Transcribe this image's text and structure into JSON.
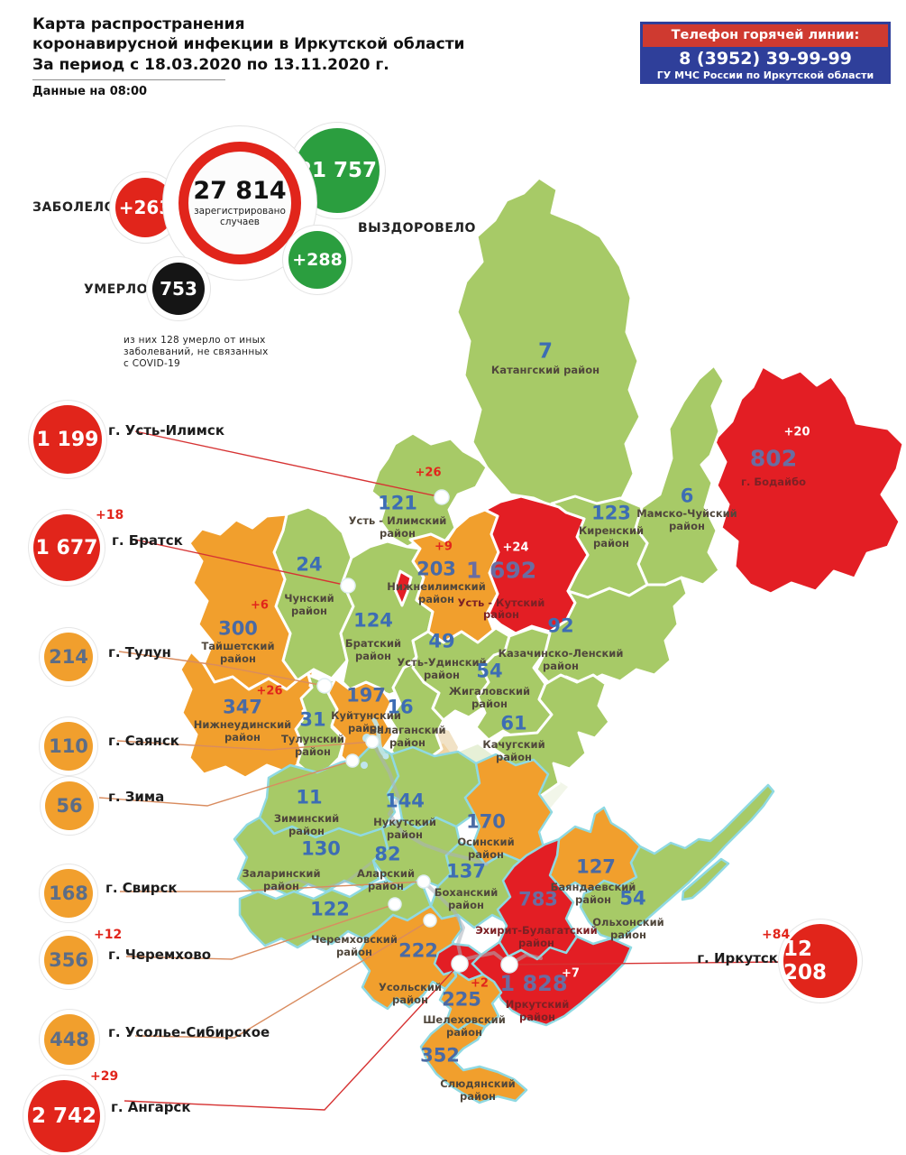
{
  "header": {
    "title": "Карта распространения\nкоронавирусной инфекции в Иркутской области\nЗа период с 18.03.2020 по 13.11.2020 г.",
    "data_asof": "Данные на 08:00"
  },
  "hotline": {
    "title": "Телефон горячей линии:",
    "phone": "8 (3952) 39-99-99",
    "org": "ГУ МЧС России по Иркутской области"
  },
  "stats": {
    "sick_label": "ЗАБОЛЕЛО",
    "sick_delta": "+263",
    "registered_value": "27 814",
    "registered_caption": "зарегистрировано\nслучаев",
    "recovered_value": "21 757",
    "recovered_label": "ВЫЗДОРОВЕЛО",
    "recovered_delta": "+288",
    "died_label": "УМЕРЛО",
    "died_value": "753",
    "died_note": "из них 128 умерло от иных\nзаболеваний, не связанных\nс COVID-19"
  },
  "cities": [
    {
      "id": "ust_ilimsk",
      "value": "1 199",
      "delta": "",
      "label": "г. Усть-Илимск"
    },
    {
      "id": "bratsk",
      "value": "1 677",
      "delta": "+18",
      "label": "г. Братск"
    },
    {
      "id": "tulun",
      "value": "214",
      "delta": "",
      "label": "г. Тулун"
    },
    {
      "id": "sayansk",
      "value": "110",
      "delta": "",
      "label": "г. Саянск"
    },
    {
      "id": "zima",
      "value": "56",
      "delta": "",
      "label": "г. Зима"
    },
    {
      "id": "svirsk",
      "value": "168",
      "delta": "",
      "label": "г. Свирск"
    },
    {
      "id": "cheremkhovo",
      "value": "356",
      "delta": "+12",
      "label": "г. Черемхово"
    },
    {
      "id": "usolye",
      "value": "448",
      "delta": "",
      "label": "г. Усолье-Сибирское"
    },
    {
      "id": "angarsk",
      "value": "2 742",
      "delta": "+29",
      "label": "г. Ангарск"
    },
    {
      "id": "irkutsk",
      "value": "12 208",
      "delta": "+84",
      "label": "г. Иркутск"
    }
  ],
  "map": {
    "regions": [
      {
        "id": "katangsky",
        "name": "Катангский район",
        "cases": "7",
        "delta": "",
        "tone": "green"
      },
      {
        "id": "bodaibo",
        "name": "г. Бодайбо",
        "cases": "802",
        "delta": "+20",
        "tone": "red"
      },
      {
        "id": "ust_ilimsky",
        "name": "Усть - Илимский\nрайон",
        "cases": "121",
        "delta": "+26",
        "tone": "green"
      },
      {
        "id": "kirensky",
        "name": "Киренский\nрайон",
        "cases": "123",
        "delta": "",
        "tone": "green"
      },
      {
        "id": "mamsko",
        "name": "Мамско-Чуйский\nрайон",
        "cases": "6",
        "delta": "",
        "tone": "green"
      },
      {
        "id": "chunsky",
        "name": "Чунский\nрайон",
        "cases": "24",
        "delta": "",
        "tone": "green"
      },
      {
        "id": "nizhneilimsky",
        "name": "Нижнеилимский\nрайон",
        "cases": "203",
        "delta": "+9",
        "tone": "orange"
      },
      {
        "id": "ust_kutsky",
        "name": "Усть - Кутский\nрайон",
        "cases": "1 692",
        "delta": "+24",
        "tone": "red"
      },
      {
        "id": "bratsky",
        "name": "Братский\nрайон",
        "cases": "124",
        "delta": "",
        "tone": "green"
      },
      {
        "id": "kazachinsko",
        "name": "Казачинско-Ленский\nрайон",
        "cases": "92",
        "delta": "",
        "tone": "green"
      },
      {
        "id": "taishetsky",
        "name": "Тайшетский\nрайон",
        "cases": "300",
        "delta": "+6",
        "tone": "orange"
      },
      {
        "id": "ust_udinsky",
        "name": "Усть-Удинский\nрайон",
        "cases": "49",
        "delta": "",
        "tone": "green"
      },
      {
        "id": "zhigalovsky",
        "name": "Жигаловский\nрайон",
        "cases": "54",
        "delta": "",
        "tone": "green"
      },
      {
        "id": "kachugsky",
        "name": "Качугский\nрайон",
        "cases": "61",
        "delta": "",
        "tone": "green"
      },
      {
        "id": "nizhneudinsky",
        "name": "Нижнеудинский\nрайон",
        "cases": "347",
        "delta": "+26",
        "tone": "orange"
      },
      {
        "id": "kuitunsky",
        "name": "Куйтунский\nрайон",
        "cases": "197",
        "delta": "",
        "tone": "orange"
      },
      {
        "id": "tulunsky",
        "name": "Тулунский\nрайон",
        "cases": "31",
        "delta": "",
        "tone": "green"
      },
      {
        "id": "balagansky",
        "name": "Балаганский\nрайон",
        "cases": "16",
        "delta": "",
        "tone": "green"
      },
      {
        "id": "ziminsky",
        "name": "Зиминский\nрайон",
        "cases": "11",
        "delta": "",
        "tone": "green"
      },
      {
        "id": "nukutsky",
        "name": "Нукутский\nрайон",
        "cases": "144",
        "delta": "",
        "tone": "green"
      },
      {
        "id": "osinsky",
        "name": "Осинский\nрайон",
        "cases": "170",
        "delta": "",
        "tone": "orange"
      },
      {
        "id": "zalarinsky",
        "name": "Заларинский\nрайон",
        "cases": "130",
        "delta": "",
        "tone": "green"
      },
      {
        "id": "alarsky",
        "name": "Аларский\nрайон",
        "cases": "82",
        "delta": "",
        "tone": "green"
      },
      {
        "id": "bokhansky",
        "name": "Боханский\nрайон",
        "cases": "137",
        "delta": "",
        "tone": "green"
      },
      {
        "id": "bayandaevsky",
        "name": "Баяндаевский\nрайон",
        "cases": "127",
        "delta": "",
        "tone": "orange"
      },
      {
        "id": "olkhonsky",
        "name": "Ольхонский\nрайон",
        "cases": "54",
        "delta": "",
        "tone": "green"
      },
      {
        "id": "cheremkhovsky",
        "name": "Черемховский\nрайон",
        "cases": "122",
        "delta": "",
        "tone": "green"
      },
      {
        "id": "ekhirit",
        "name": "Эхирит-Булагатский\nрайон",
        "cases": "783",
        "delta": "",
        "tone": "red"
      },
      {
        "id": "usolsky",
        "name": "Усольский\nрайон",
        "cases": "222",
        "delta": "",
        "tone": "orange"
      },
      {
        "id": "shelekhovsky",
        "name": "Шелеховский\nрайон",
        "cases": "225",
        "delta": "+2",
        "tone": "orange"
      },
      {
        "id": "irkutsky",
        "name": "Иркутский\nрайон",
        "cases": "1 828",
        "delta": "+7",
        "tone": "red"
      },
      {
        "id": "slyudyansky",
        "name": "Слюдянский\nрайон",
        "cases": "352",
        "delta": "",
        "tone": "orange"
      }
    ]
  },
  "colors": {
    "map_green": "#a7ca67",
    "map_orange": "#f19f2d",
    "map_red": "#e31e24",
    "stat_green": "#2b9e3f",
    "stat_red": "#e1251b",
    "stat_black": "#151515",
    "hotline_red": "#cf3a30",
    "hotline_blue": "#2f3f9a",
    "number_blue": "#3d6db4",
    "cyan_outline": "#8fd9e2"
  }
}
